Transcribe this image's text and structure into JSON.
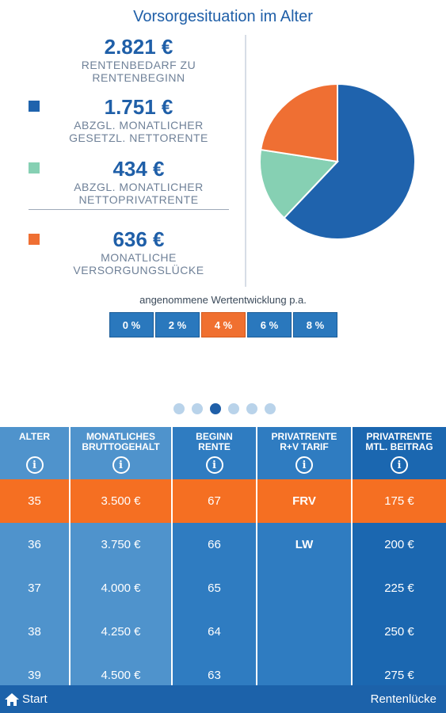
{
  "title": "Vorsorgesituation im Alter",
  "stats": [
    {
      "value": "2.821 €",
      "label1": "RENTENBEDARF ZU",
      "label2": "RENTENBEGINN",
      "color": ""
    },
    {
      "value": "1.751 €",
      "label1": "ABZGL. MONATLICHER",
      "label2": "GESETZL. NETTORENTE",
      "color": "#1f63ad"
    },
    {
      "value": "434 €",
      "label1": "ABZGL. MONATLICHER",
      "label2": "NETTOPRIVATRENTE",
      "color": "#86d0b3"
    },
    {
      "value": "636 €",
      "label1": "MONATLICHE",
      "label2": "VERSORGUNGSLÜCKE",
      "color": "#ef6f33"
    }
  ],
  "chart_data": {
    "type": "pie",
    "slices": [
      {
        "value": 1751,
        "color": "#1f63ad"
      },
      {
        "value": 434,
        "color": "#86d0b3"
      },
      {
        "value": 636,
        "color": "#ef6f33"
      }
    ]
  },
  "rates": {
    "label": "angenommene Wertentwicklung p.a.",
    "options": [
      "0 %",
      "2 %",
      "4 %",
      "6 %",
      "8 %"
    ],
    "selected_index": 2
  },
  "pager": {
    "count": 6,
    "active_index": 2
  },
  "table": {
    "headers": [
      {
        "line1": "ALTER",
        "line2": ""
      },
      {
        "line1": "MONATLICHES",
        "line2": "BRUTTOGEHALT"
      },
      {
        "line1": "BEGINN",
        "line2": "RENTE"
      },
      {
        "line1": "PRIVATRENTE",
        "line2": "R+V TARIF"
      },
      {
        "line1": "PRIVATRENTE",
        "line2": "MTL. BEITRAG"
      }
    ],
    "columns": [
      [
        "35",
        "36",
        "37",
        "38",
        "39"
      ],
      [
        "3.500 €",
        "3.750 €",
        "4.000 €",
        "4.250 €",
        "4.500 €"
      ],
      [
        "67",
        "66",
        "65",
        "64",
        "63"
      ],
      [
        "FRV",
        "LW",
        "",
        "",
        ""
      ],
      [
        "175 €",
        "200 €",
        "225 €",
        "250 €",
        "275 €"
      ]
    ],
    "selected_row": 0
  },
  "footer": {
    "start_label": "Start",
    "right_label": "Rentenlücke"
  }
}
